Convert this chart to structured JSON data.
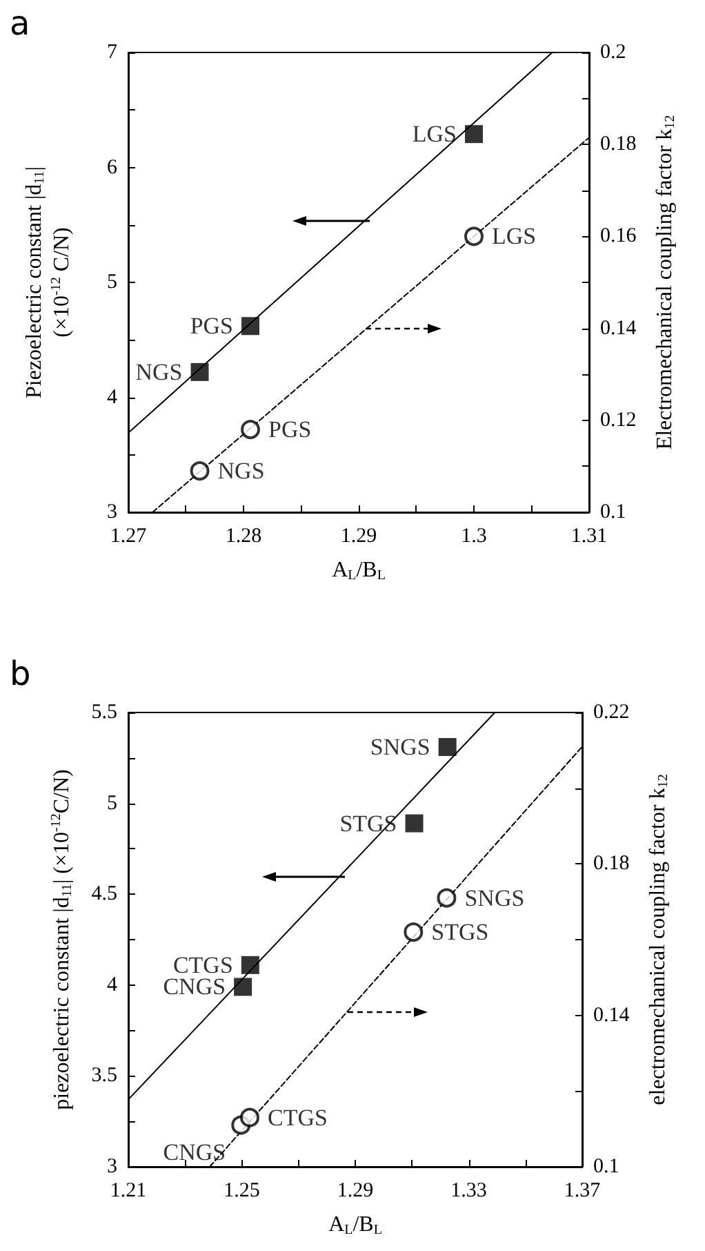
{
  "chart_data": [
    {
      "type": "scatter",
      "title": "a",
      "xlabel": "A$_{L}$/B$_{L}$",
      "ylabel": "Piezoelectric constant |d$_{11}$|\n(×10$^{-12}$ C/N)",
      "y2label": "Electromechanical coupling factor k$_{12}$",
      "xlim": [
        1.27,
        1.31
      ],
      "xticks": [
        1.27,
        {
          "value": 1.275,
          "label": null
        },
        1.28,
        {
          "value": 1.285,
          "label": null
        },
        1.29,
        {
          "value": 1.295,
          "label": null
        },
        1.3,
        {
          "value": 1.305,
          "label": null
        },
        1.31
      ],
      "ylim": [
        3,
        7
      ],
      "yticks": [
        3,
        {
          "value": 3.5,
          "label": null
        },
        4,
        {
          "value": 4.5,
          "label": null
        },
        5,
        {
          "value": 5.5,
          "label": null
        },
        6,
        {
          "value": 6.5,
          "label": null
        },
        7
      ],
      "y2lim": [
        0.1,
        0.2
      ],
      "y2ticks": [
        0.1,
        {
          "value": 0.11,
          "label": null
        },
        0.12,
        {
          "value": 0.13,
          "label": null
        },
        0.14,
        {
          "value": 0.15,
          "label": null
        },
        0.16,
        {
          "value": 0.17,
          "label": null
        },
        0.18,
        {
          "value": 0.19,
          "label": null
        },
        0.2
      ],
      "series": [
        {
          "marker": "square",
          "color": "#000000",
          "x": [
            1.2762,
            1.2806,
            1.3
          ],
          "values": [
            4.22,
            4.62,
            6.29
          ],
          "value_labels": [
            "NGS",
            "PGS",
            "LGS"
          ]
        },
        {
          "marker": "circle",
          "axis": "y2",
          "color": "#000000",
          "x": [
            1.2762,
            1.2806,
            1.3
          ],
          "values": [
            0.109,
            0.118,
            0.16
          ],
          "value_labels": [
            "NGS",
            "PGS",
            "LGS"
          ]
        },
        {
          "type": "line",
          "marker": "none",
          "line_style": "solid",
          "color": "#000000",
          "x": [
            1.27,
            1.3068
          ],
          "values": [
            3.69,
            7
          ]
        },
        {
          "type": "line",
          "marker": "none",
          "line_style": "dashed",
          "axis": "y2",
          "color": "#000000",
          "x": [
            1.2721,
            1.31
          ],
          "values": [
            0.1,
            0.1815
          ]
        }
      ]
    },
    {
      "type": "scatter",
      "title": "b",
      "xlabel": "A$_{L}$/B$_{L}$",
      "ylabel": "piezoelectric constant |d$_{11}$| (×10$^{-12}$C/N)",
      "y2label": "electromechanical coupling factor k$_{12}$",
      "xlim": [
        1.21,
        1.37
      ],
      "xticks": [
        1.21,
        {
          "value": 1.23,
          "label": null
        },
        1.25,
        {
          "value": 1.27,
          "label": null
        },
        1.29,
        {
          "value": 1.31,
          "label": null
        },
        1.33,
        {
          "value": 1.35,
          "label": null
        },
        1.37
      ],
      "ylim": [
        3,
        5.5
      ],
      "yticks": [
        3,
        {
          "value": 3.25,
          "label": null
        },
        3.5,
        {
          "value": 3.75,
          "label": null
        },
        4,
        {
          "value": 4.25,
          "label": null
        },
        4.5,
        {
          "value": 4.75,
          "label": null
        },
        5,
        {
          "value": 5.25,
          "label": null
        },
        5.5
      ],
      "y2lim": [
        0.1,
        0.22
      ],
      "y2ticks": [
        0.1,
        {
          "value": 0.12,
          "label": null
        },
        0.14,
        {
          "value": 0.16,
          "label": null
        },
        0.18,
        {
          "value": 0.2,
          "label": null
        },
        0.22
      ],
      "series": [
        {
          "marker": "square",
          "color": "#000000",
          "x": [
            1.2504,
            1.253,
            1.3108,
            1.3225
          ],
          "values": [
            3.99,
            4.11,
            4.89,
            5.31
          ],
          "value_labels": [
            "CNGS",
            "CTGS",
            "STGS",
            "SNGS"
          ]
        },
        {
          "marker": "circle",
          "axis": "y2",
          "color": "#000000",
          "x": [
            1.2497,
            1.2528,
            1.3105,
            1.3222
          ],
          "values": [
            0.111,
            0.113,
            0.162,
            0.171
          ],
          "value_labels": [
            "CNGS",
            "CTGS",
            "STGS",
            "SNGS"
          ]
        },
        {
          "type": "line",
          "marker": "none",
          "line_style": "solid",
          "color": "#000000",
          "x": [
            1.21,
            1.3392
          ],
          "values": [
            3.37,
            5.5
          ]
        },
        {
          "type": "line",
          "marker": "none",
          "line_style": "dashed",
          "axis": "y2",
          "color": "#000000",
          "x": [
            1.2387,
            1.37
          ],
          "values": [
            0.1,
            0.211
          ]
        }
      ]
    }
  ]
}
